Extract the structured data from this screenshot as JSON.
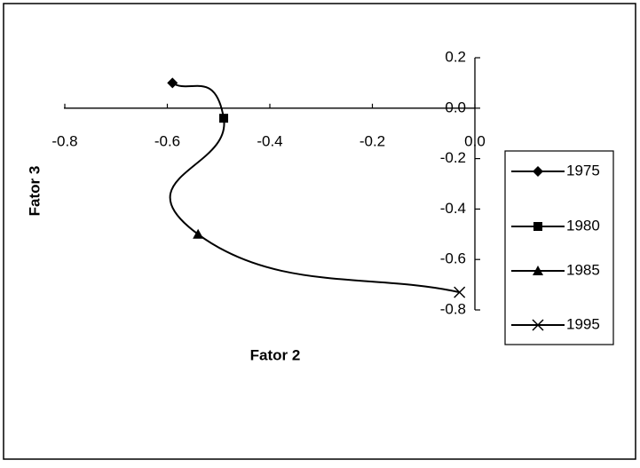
{
  "chart_data": {
    "type": "line",
    "x_label": "Fator 2",
    "y_label": "Fator 3",
    "series": [
      {
        "name": "1975",
        "marker": "diamond",
        "color": "#000000",
        "x": [
          -0.59
        ],
        "values": [
          0.1
        ]
      },
      {
        "name": "1980",
        "marker": "square",
        "color": "#000000",
        "x": [
          -0.49
        ],
        "values": [
          -0.04
        ]
      },
      {
        "name": "1985",
        "marker": "triangle",
        "color": "#000000",
        "x": [
          -0.54
        ],
        "values": [
          -0.5
        ]
      },
      {
        "name": "1995",
        "marker": "x",
        "color": "#000000",
        "x": [
          -0.03
        ],
        "values": [
          -0.73
        ]
      }
    ],
    "xlim": [
      -0.8,
      0
    ],
    "xticks": [
      -0.8,
      -0.6,
      -0.4,
      -0.2,
      {
        "value": 0,
        "label": "0.0"
      }
    ],
    "ylim": [
      -0.8,
      0.2
    ],
    "yticks": [
      0.2,
      {
        "value": 0,
        "label": "0.0"
      },
      -0.2,
      -0.4,
      -0.6,
      -0.8
    ],
    "smooth": true,
    "legend": "right"
  }
}
